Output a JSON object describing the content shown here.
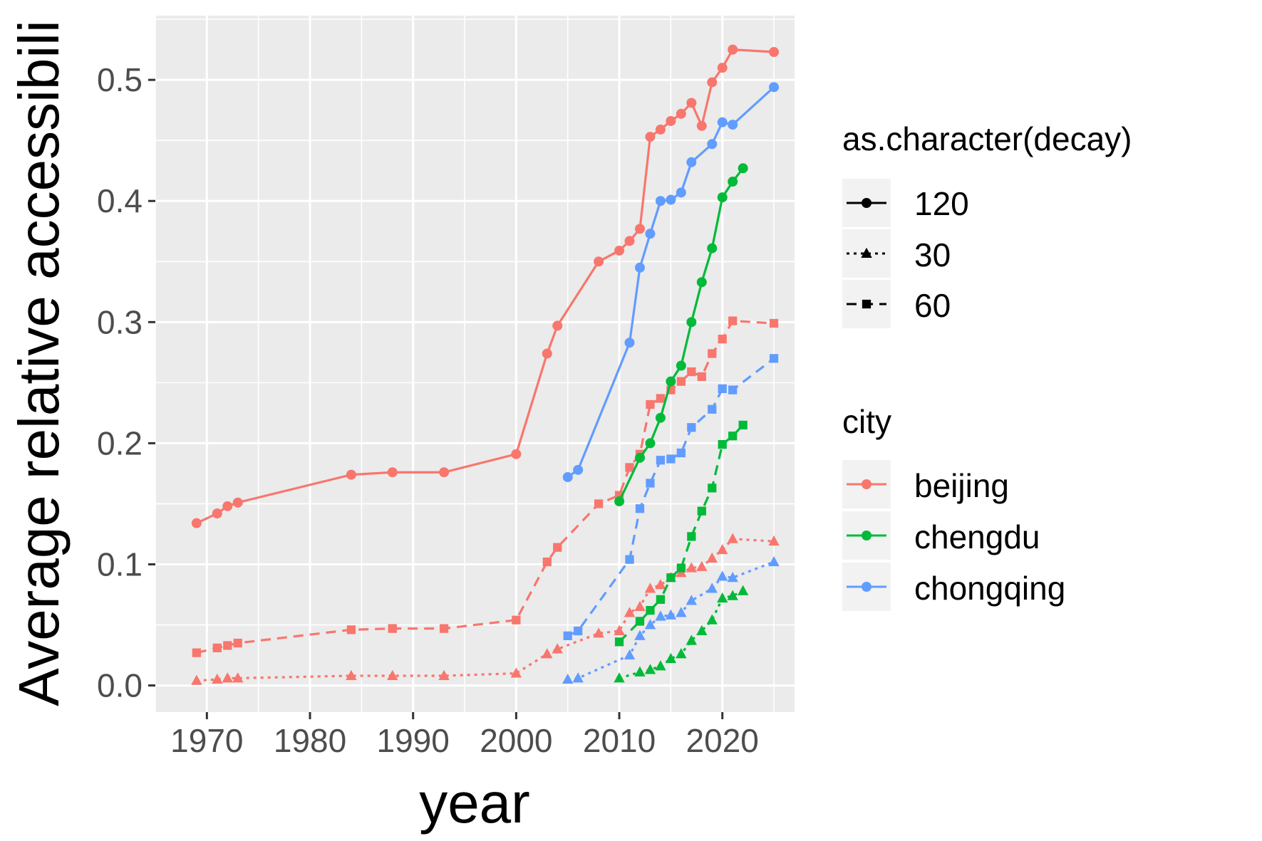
{
  "chart_data": {
    "type": "line",
    "title": "",
    "xlabel": "year",
    "ylabel": "Average relative accessibili",
    "xlim": [
      1965,
      2027
    ],
    "ylim": [
      -0.022,
      0.553
    ],
    "x_ticks": [
      1970,
      1980,
      1990,
      2000,
      2010,
      2020
    ],
    "x_tick_labels": [
      "1970",
      "1980",
      "1990",
      "2000",
      "2010",
      "2020"
    ],
    "y_ticks": [
      0.0,
      0.1,
      0.2,
      0.3,
      0.4,
      0.5
    ],
    "y_tick_labels": [
      "0.0",
      "0.1",
      "0.2",
      "0.3",
      "0.4",
      "0.5"
    ],
    "grid": true,
    "legend_position": "right",
    "legends": [
      {
        "title": "as.character(decay)",
        "entries": [
          {
            "label": "120",
            "shape": "circle",
            "linetype": "solid"
          },
          {
            "label": "30",
            "shape": "triangle",
            "linetype": "dotted"
          },
          {
            "label": "60",
            "shape": "square",
            "linetype": "dashed"
          }
        ]
      },
      {
        "title": "city",
        "entries": [
          {
            "label": "beijing",
            "color": "#F8766D"
          },
          {
            "label": "chengdu",
            "color": "#00BA38"
          },
          {
            "label": "chongqing",
            "color": "#619CFF"
          }
        ]
      }
    ],
    "series": [
      {
        "city": "beijing",
        "decay": "120",
        "color": "#F8766D",
        "shape": "circle",
        "linetype": "solid",
        "x": [
          1969,
          1971,
          1972,
          1973,
          1984,
          1988,
          1993,
          2000,
          2003,
          2004,
          2008,
          2010,
          2011,
          2012,
          2013,
          2014,
          2015,
          2016,
          2017,
          2018,
          2019,
          2020,
          2021,
          2025
        ],
        "y": [
          0.134,
          0.142,
          0.148,
          0.151,
          0.174,
          0.176,
          0.176,
          0.191,
          0.274,
          0.297,
          0.35,
          0.359,
          0.367,
          0.377,
          0.453,
          0.459,
          0.466,
          0.472,
          0.481,
          0.462,
          0.498,
          0.51,
          0.525,
          0.523
        ]
      },
      {
        "city": "beijing",
        "decay": "60",
        "color": "#F8766D",
        "shape": "square",
        "linetype": "dashed",
        "x": [
          1969,
          1971,
          1972,
          1973,
          1984,
          1988,
          1993,
          2000,
          2003,
          2004,
          2008,
          2010,
          2011,
          2012,
          2013,
          2014,
          2015,
          2016,
          2017,
          2018,
          2019,
          2020,
          2021,
          2025
        ],
        "y": [
          0.027,
          0.031,
          0.033,
          0.035,
          0.046,
          0.047,
          0.047,
          0.054,
          0.102,
          0.114,
          0.15,
          0.157,
          0.18,
          0.191,
          0.232,
          0.237,
          0.244,
          0.251,
          0.259,
          0.255,
          0.274,
          0.286,
          0.301,
          0.299
        ]
      },
      {
        "city": "beijing",
        "decay": "30",
        "color": "#F8766D",
        "shape": "triangle",
        "linetype": "dotted",
        "x": [
          1969,
          1971,
          1972,
          1973,
          1984,
          1988,
          1993,
          2000,
          2003,
          2004,
          2008,
          2010,
          2011,
          2012,
          2013,
          2014,
          2015,
          2016,
          2017,
          2018,
          2019,
          2020,
          2021,
          2025
        ],
        "y": [
          0.004,
          0.005,
          0.006,
          0.006,
          0.008,
          0.008,
          0.008,
          0.01,
          0.026,
          0.03,
          0.043,
          0.045,
          0.06,
          0.065,
          0.08,
          0.083,
          0.089,
          0.093,
          0.097,
          0.098,
          0.105,
          0.112,
          0.121,
          0.119
        ]
      },
      {
        "city": "chengdu",
        "decay": "120",
        "color": "#00BA38",
        "shape": "circle",
        "linetype": "solid",
        "x": [
          2010,
          2012,
          2013,
          2014,
          2015,
          2016,
          2017,
          2018,
          2019,
          2020,
          2021,
          2022
        ],
        "y": [
          0.152,
          0.188,
          0.2,
          0.221,
          0.251,
          0.264,
          0.3,
          0.333,
          0.361,
          0.403,
          0.416,
          0.427
        ]
      },
      {
        "city": "chengdu",
        "decay": "60",
        "color": "#00BA38",
        "shape": "square",
        "linetype": "dashed",
        "x": [
          2010,
          2012,
          2013,
          2014,
          2015,
          2016,
          2017,
          2018,
          2019,
          2020,
          2021,
          2022
        ],
        "y": [
          0.036,
          0.053,
          0.062,
          0.071,
          0.089,
          0.097,
          0.123,
          0.144,
          0.163,
          0.199,
          0.206,
          0.215
        ]
      },
      {
        "city": "chengdu",
        "decay": "30",
        "color": "#00BA38",
        "shape": "triangle",
        "linetype": "dotted",
        "x": [
          2010,
          2012,
          2013,
          2014,
          2015,
          2016,
          2017,
          2018,
          2019,
          2020,
          2021,
          2022
        ],
        "y": [
          0.006,
          0.011,
          0.013,
          0.016,
          0.022,
          0.026,
          0.037,
          0.045,
          0.054,
          0.072,
          0.074,
          0.078
        ]
      },
      {
        "city": "chongqing",
        "decay": "120",
        "color": "#619CFF",
        "shape": "circle",
        "linetype": "solid",
        "x": [
          2005,
          2006,
          2011,
          2012,
          2013,
          2014,
          2015,
          2016,
          2017,
          2019,
          2020,
          2021,
          2025
        ],
        "y": [
          0.172,
          0.178,
          0.283,
          0.345,
          0.373,
          0.4,
          0.401,
          0.407,
          0.432,
          0.447,
          0.465,
          0.463,
          0.494
        ]
      },
      {
        "city": "chongqing",
        "decay": "60",
        "color": "#619CFF",
        "shape": "square",
        "linetype": "dashed",
        "x": [
          2005,
          2006,
          2011,
          2012,
          2013,
          2014,
          2015,
          2016,
          2017,
          2019,
          2020,
          2021,
          2025
        ],
        "y": [
          0.041,
          0.045,
          0.104,
          0.146,
          0.167,
          0.186,
          0.187,
          0.192,
          0.213,
          0.228,
          0.245,
          0.244,
          0.27
        ]
      },
      {
        "city": "chongqing",
        "decay": "30",
        "color": "#619CFF",
        "shape": "triangle",
        "linetype": "dotted",
        "x": [
          2005,
          2006,
          2011,
          2012,
          2013,
          2014,
          2015,
          2016,
          2017,
          2019,
          2020,
          2021,
          2025
        ],
        "y": [
          0.005,
          0.006,
          0.025,
          0.041,
          0.05,
          0.057,
          0.058,
          0.06,
          0.07,
          0.08,
          0.09,
          0.089,
          0.102
        ]
      }
    ]
  }
}
